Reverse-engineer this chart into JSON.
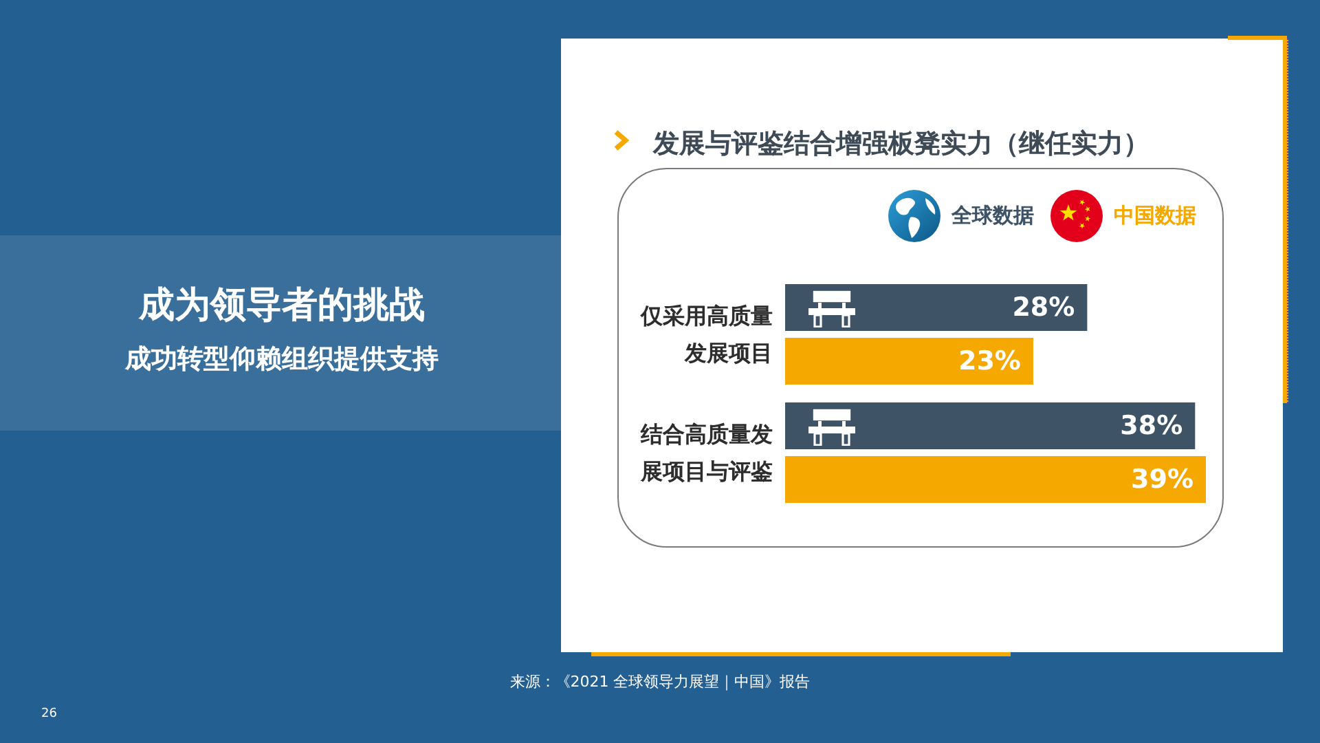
{
  "chart_data": {
    "type": "bar",
    "orientation": "horizontal",
    "title": "发展与评鉴结合增强板凳实力（继任实力）",
    "categories": [
      "仅采用高质量发展项目",
      "结合高质量发展项目与评鉴"
    ],
    "series": [
      {
        "name": "全球数据",
        "color": "#3f5366",
        "values": [
          28,
          38
        ],
        "value_labels": [
          "28%",
          "38%"
        ]
      },
      {
        "name": "中国数据",
        "color": "#f5a800",
        "values": [
          23,
          39
        ],
        "value_labels": [
          "23%",
          "39%"
        ]
      }
    ],
    "legend": "top right",
    "tick_labels": "y",
    "annotations": [
      "成为领导者的挑战",
      "成功转型仰赖组织提供支持",
      "来源：《2021 全球领导力展望｜中国》报告",
      "26"
    ]
  }
}
